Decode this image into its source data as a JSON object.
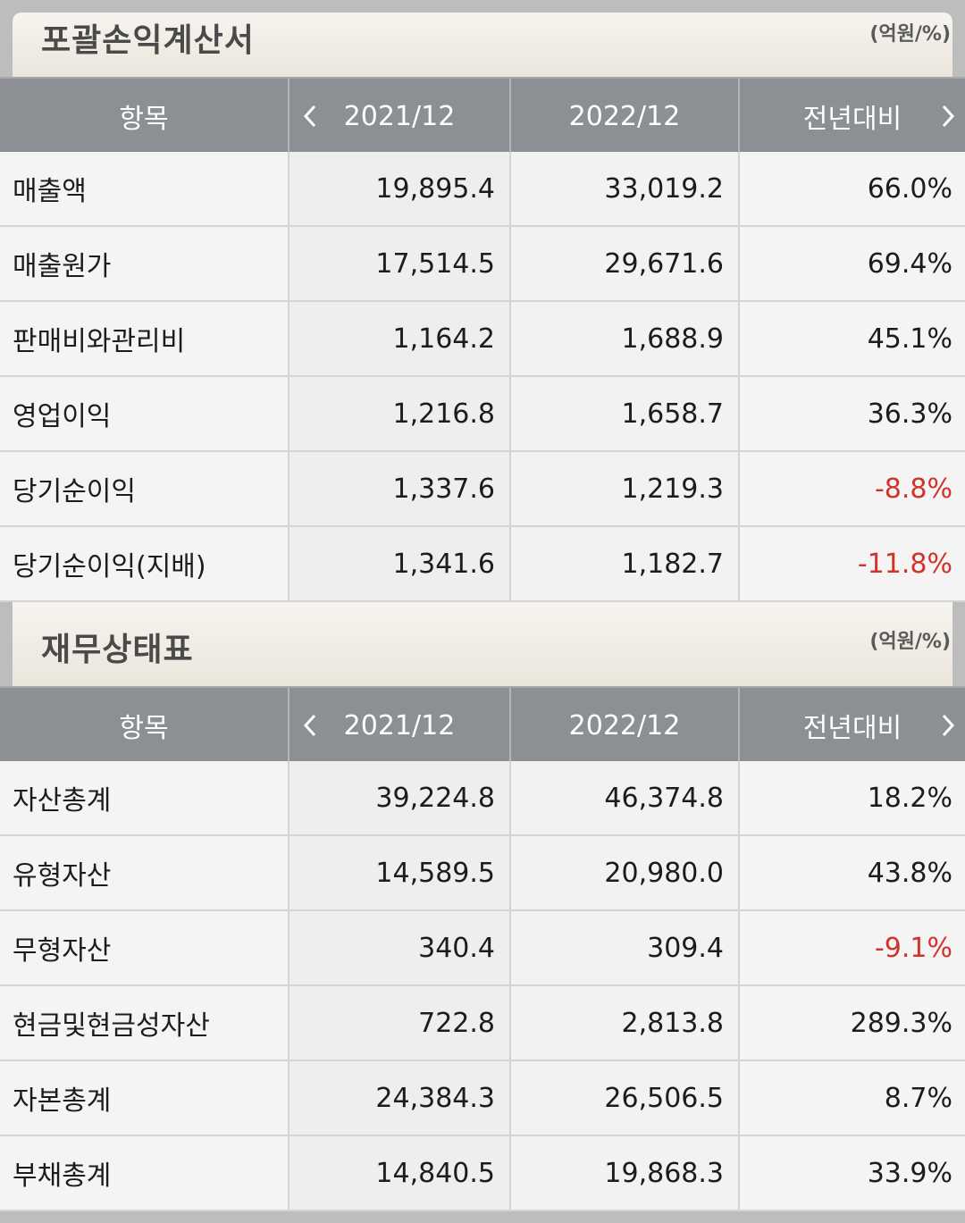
{
  "income": {
    "title": "포괄손익계산서",
    "unit": "(억원/%)",
    "headers": {
      "item": "항목",
      "col1": "2021/12",
      "col2": "2022/12",
      "col3": "전년대비"
    },
    "rows": [
      {
        "label": "매출액",
        "v2021": "19,895.4",
        "v2022": "33,019.2",
        "yoy": "66.0%",
        "neg": false
      },
      {
        "label": "매출원가",
        "v2021": "17,514.5",
        "v2022": "29,671.6",
        "yoy": "69.4%",
        "neg": false
      },
      {
        "label": "판매비와관리비",
        "v2021": "1,164.2",
        "v2022": "1,688.9",
        "yoy": "45.1%",
        "neg": false
      },
      {
        "label": "영업이익",
        "v2021": "1,216.8",
        "v2022": "1,658.7",
        "yoy": "36.3%",
        "neg": false
      },
      {
        "label": "당기순이익",
        "v2021": "1,337.6",
        "v2022": "1,219.3",
        "yoy": "-8.8%",
        "neg": true
      },
      {
        "label": "당기순이익(지배)",
        "v2021": "1,341.6",
        "v2022": "1,182.7",
        "yoy": "-11.8%",
        "neg": true
      }
    ]
  },
  "balance": {
    "title": "재무상태표",
    "unit": "(억원/%)",
    "headers": {
      "item": "항목",
      "col1": "2021/12",
      "col2": "2022/12",
      "col3": "전년대비"
    },
    "rows": [
      {
        "label": "자산총계",
        "v2021": "39,224.8",
        "v2022": "46,374.8",
        "yoy": "18.2%",
        "neg": false
      },
      {
        "label": "유형자산",
        "v2021": "14,589.5",
        "v2022": "20,980.0",
        "yoy": "43.8%",
        "neg": false
      },
      {
        "label": "무형자산",
        "v2021": "340.4",
        "v2022": "309.4",
        "yoy": "-9.1%",
        "neg": true
      },
      {
        "label": "현금및현금성자산",
        "v2021": "722.8",
        "v2022": "2,813.8",
        "yoy": "289.3%",
        "neg": false
      },
      {
        "label": "자본총계",
        "v2021": "24,384.3",
        "v2022": "26,506.5",
        "yoy": "8.7%",
        "neg": false
      },
      {
        "label": "부채총계",
        "v2021": "14,840.5",
        "v2022": "19,868.3",
        "yoy": "33.9%",
        "neg": false
      }
    ]
  },
  "colors": {
    "header_bg": "#8c8f93",
    "negative": "#d1332b",
    "text": "#1c1c1c"
  }
}
